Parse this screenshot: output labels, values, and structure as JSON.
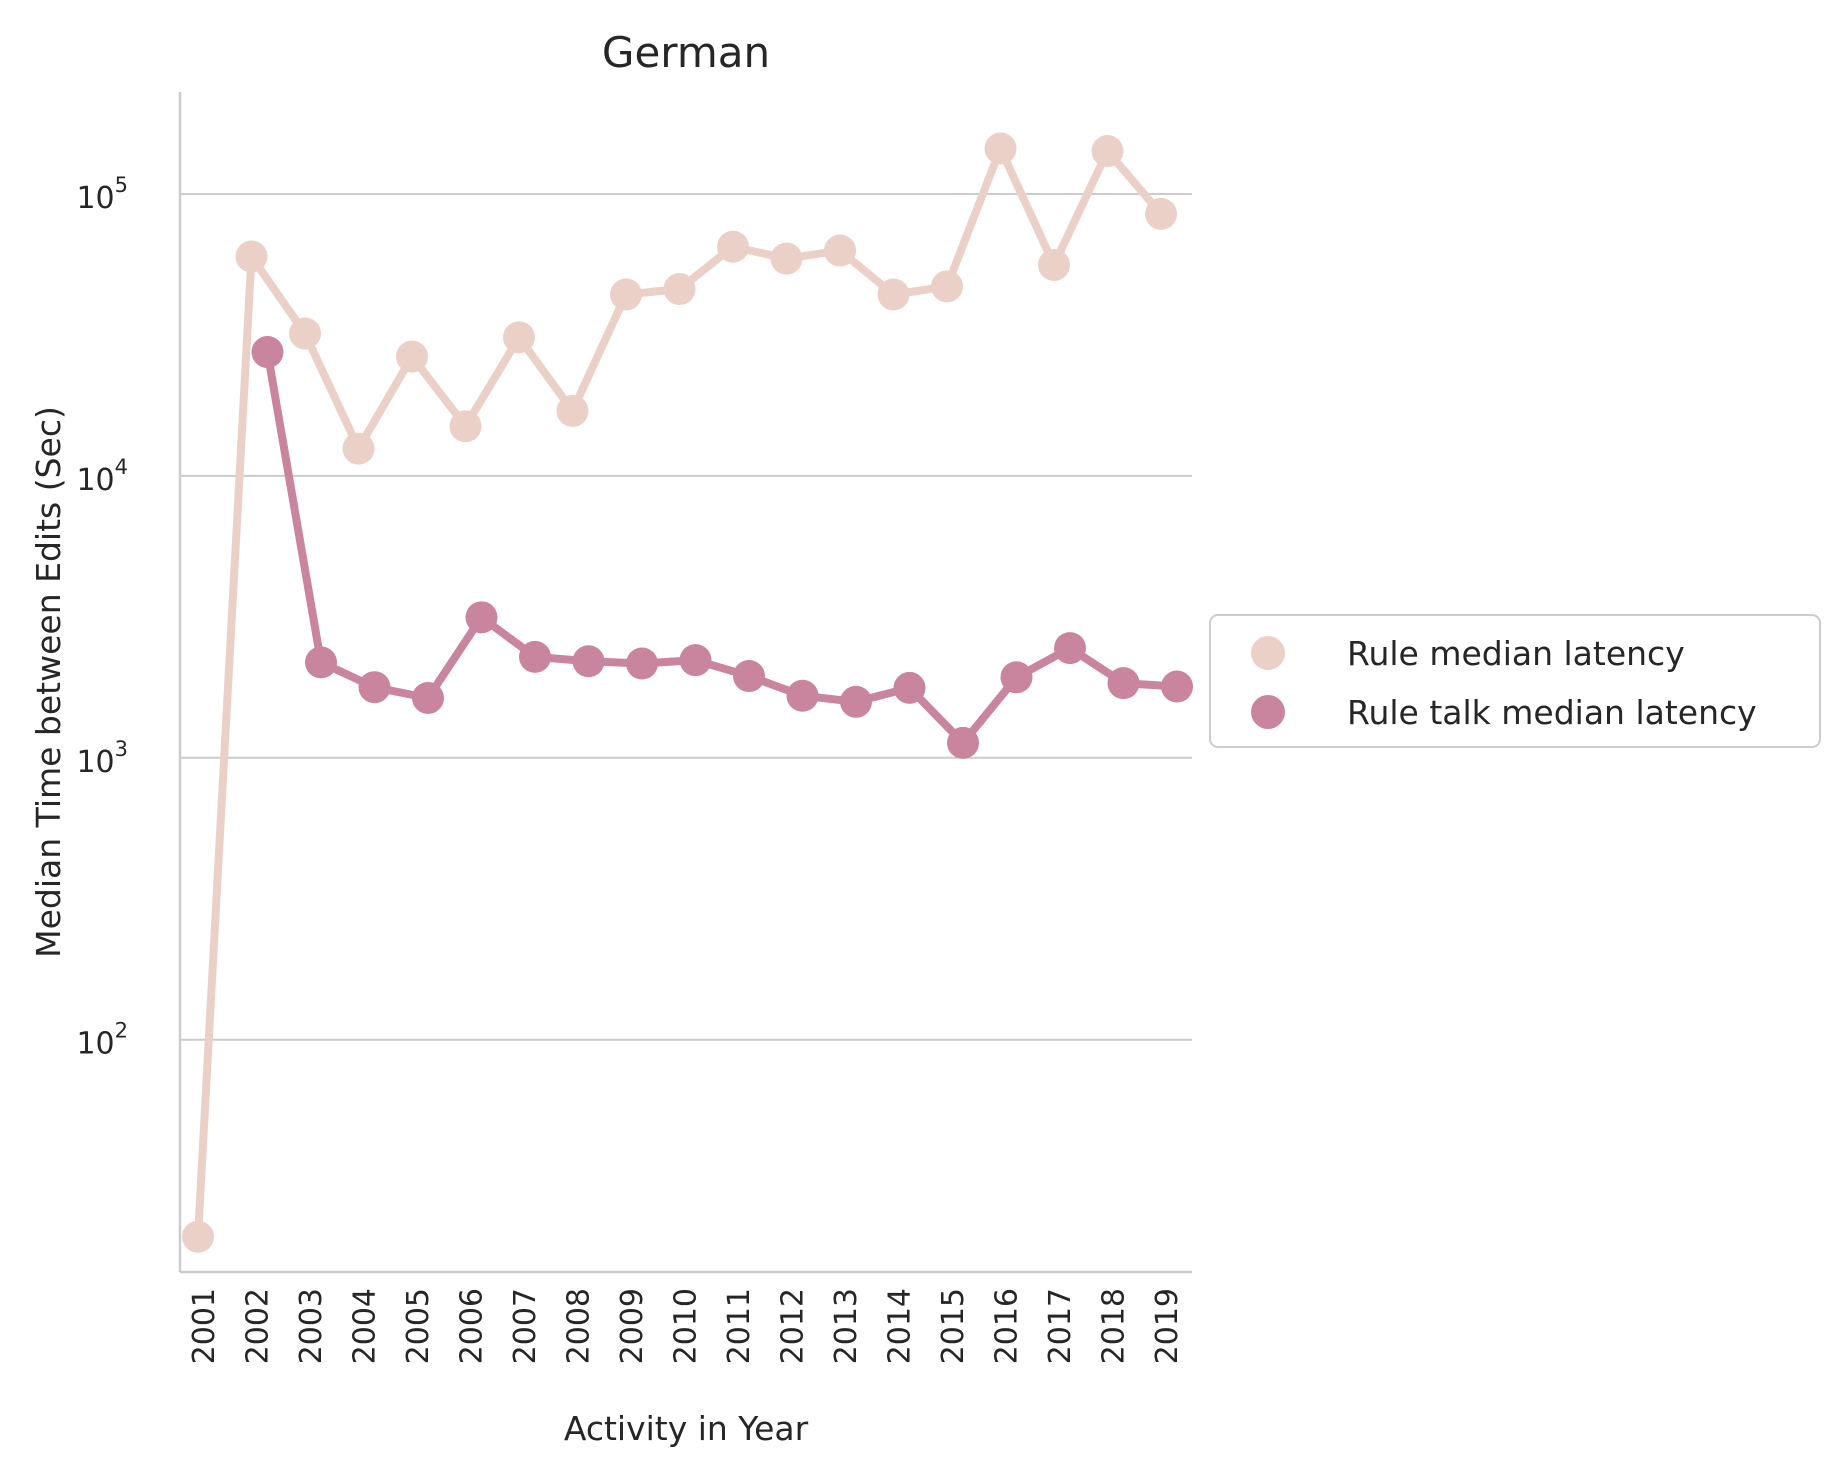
{
  "chart_data": {
    "type": "line",
    "title": "German",
    "xlabel": "Activity in Year",
    "ylabel": "Median Time between Edits (Sec)",
    "yscale": "log",
    "ylim": [
      15,
      230000
    ],
    "yticks": [
      {
        "value": 100,
        "base": "10",
        "exp": "2"
      },
      {
        "value": 1000,
        "base": "10",
        "exp": "3"
      },
      {
        "value": 10000,
        "base": "10",
        "exp": "4"
      },
      {
        "value": 100000,
        "base": "10",
        "exp": "5"
      }
    ],
    "categories": [
      "2001",
      "2002",
      "2003",
      "2004",
      "2005",
      "2006",
      "2007",
      "2008",
      "2009",
      "2010",
      "2011",
      "2012",
      "2013",
      "2014",
      "2015",
      "2016",
      "2017",
      "2018",
      "2019"
    ],
    "grid": "horizontal",
    "legend_position": "center-right",
    "series": [
      {
        "name": "Rule median latency",
        "color": "#ebd0c8",
        "values": [
          20,
          60000,
          32000,
          12500,
          26500,
          15000,
          31000,
          17000,
          44000,
          46000,
          65000,
          59000,
          63000,
          44000,
          47000,
          145000,
          56000,
          142000,
          85000
        ]
      },
      {
        "name": "Rule talk median latency",
        "color": "#c9849e",
        "values": [
          null,
          27500,
          2180,
          1780,
          1630,
          3150,
          2280,
          2200,
          2160,
          2220,
          1950,
          1660,
          1580,
          1770,
          1130,
          1930,
          2450,
          1840,
          1790
        ]
      }
    ]
  }
}
